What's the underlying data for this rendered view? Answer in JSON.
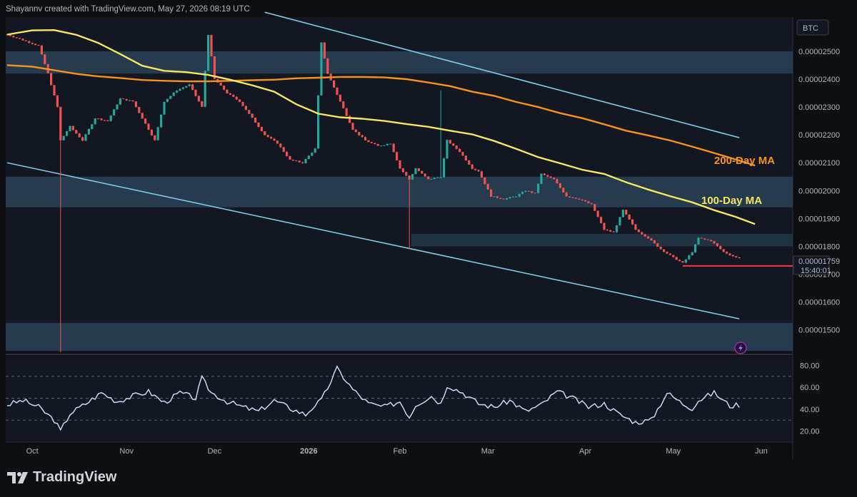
{
  "header": {
    "attribution": "Shayannv created with TradingView.com, May 27, 2026 08:19 UTC"
  },
  "footer": {
    "brand": "TradingView"
  },
  "colors": {
    "background": "#0e0f13",
    "up_candle": "#26a69a",
    "down_candle": "#ef5350",
    "ma100": "#f5e663",
    "ma200": "#f7931a",
    "channel": "#7ec8e3",
    "zone": "#2d4a5e",
    "support_line": "#f23645",
    "rsi_line": "#c9d6f0"
  },
  "chart_data": [
    {
      "type": "candlestick",
      "title": "",
      "symbol_badge": "BTC",
      "y_ticks": [
        "0.00002500",
        "0.00002400",
        "0.00002300",
        "0.00002200",
        "0.00002100",
        "0.00002000",
        "0.00001900",
        "0.00001800",
        "0.00001700",
        "0.00001600",
        "0.00001500"
      ],
      "ylim": [
        1.42e-05,
        2.62e-05
      ],
      "x_ticks": [
        "Oct",
        "Nov",
        "Dec",
        "2026",
        "Feb",
        "Mar",
        "Apr",
        "May",
        "Jun"
      ],
      "current_price": "0.00001759",
      "countdown": "15:40:01",
      "annotations": [
        {
          "text": "200-Day MA"
        },
        {
          "text": "100-Day MA"
        }
      ],
      "zones": [
        {
          "low": 2.42e-05,
          "high": 2.5e-05
        },
        {
          "low": 1.94e-05,
          "high": 2.05e-05
        },
        {
          "low": 1.8e-05,
          "high": 1.845e-05
        },
        {
          "low": 1.425e-05,
          "high": 1.525e-05
        }
      ],
      "support_level": 1.73e-05,
      "series": [
        {
          "name": "200-Day MA",
          "x": [
            0,
            8,
            15,
            22,
            29,
            36,
            43,
            50,
            57,
            64,
            71,
            78,
            85,
            92,
            99,
            106,
            113,
            120,
            127,
            134,
            141,
            148,
            155,
            162,
            169,
            176,
            183,
            190,
            197,
            204,
            211,
            218,
            225,
            232,
            238
          ],
          "values": [
            2.45e-05,
            2.445e-05,
            2.432e-05,
            2.419e-05,
            2.41e-05,
            2.404e-05,
            2.397e-05,
            2.394e-05,
            2.392e-05,
            2.392e-05,
            2.394e-05,
            2.396e-05,
            2.398e-05,
            2.403e-05,
            2.405e-05,
            2.408e-05,
            2.408e-05,
            2.406e-05,
            2.4e-05,
            2.388e-05,
            2.375e-05,
            2.355e-05,
            2.34e-05,
            2.318e-05,
            2.3e-05,
            2.278e-05,
            2.26e-05,
            2.238e-05,
            2.215e-05,
            2.198e-05,
            2.18e-05,
            2.158e-05,
            2.135e-05,
            2.111e-05,
            2.09e-05
          ]
        },
        {
          "name": "100-Day MA",
          "x": [
            0,
            8,
            15,
            22,
            29,
            36,
            43,
            50,
            57,
            64,
            71,
            78,
            85,
            92,
            99,
            106,
            113,
            120,
            127,
            134,
            141,
            148,
            155,
            162,
            169,
            176,
            183,
            190,
            197,
            204,
            211,
            218,
            225,
            232,
            238
          ],
          "values": [
            2.56e-05,
            2.575e-05,
            2.576e-05,
            2.559e-05,
            2.53e-05,
            2.49e-05,
            2.448e-05,
            2.43e-05,
            2.425e-05,
            2.415e-05,
            2.398e-05,
            2.378e-05,
            2.355e-05,
            2.31e-05,
            2.276e-05,
            2.263e-05,
            2.258e-05,
            2.25e-05,
            2.239e-05,
            2.229e-05,
            2.215e-05,
            2.202e-05,
            2.178e-05,
            2.15e-05,
            2.12e-05,
            2.098e-05,
            2.075e-05,
            2.06e-05,
            2.03e-05,
            2.004e-05,
            1.98e-05,
            1.958e-05,
            1.93e-05,
            1.905e-05,
            1.88e-05
          ]
        }
      ],
      "channel_lines": [
        {
          "from": [
            82,
            2.64e-05
          ],
          "to": [
            233,
            2.19e-05
          ]
        },
        {
          "from": [
            0,
            2.1e-05
          ],
          "to": [
            233,
            1.54e-05
          ]
        }
      ],
      "notable_wicks": [
        {
          "x": 17,
          "low": 1.42e-05
        },
        {
          "x": 128,
          "low": 1.79e-05
        },
        {
          "x": 138,
          "high": 2.36e-05
        }
      ]
    },
    {
      "type": "line",
      "title": "",
      "y_ticks": [
        "80.00",
        "60.00",
        "40.00",
        "20.00"
      ],
      "ylim": [
        10,
        88
      ],
      "dashed_levels": [
        70,
        50,
        30
      ],
      "series": [
        {
          "x": [
            0,
            5,
            10,
            15,
            17,
            20,
            25,
            30,
            35,
            40,
            45,
            50,
            55,
            60,
            62,
            65,
            70,
            75,
            80,
            85,
            90,
            95,
            98,
            100,
            105,
            110,
            115,
            120,
            125,
            128,
            130,
            135,
            138,
            140,
            145,
            150,
            155,
            160,
            165,
            170,
            175,
            180,
            185,
            190,
            195,
            200,
            205,
            210,
            215,
            218,
            220,
            225,
            230,
            233
          ],
          "values": [
            44,
            48,
            42,
            30,
            20,
            36,
            45,
            55,
            47,
            52,
            56,
            46,
            55,
            50,
            68,
            55,
            47,
            42,
            38,
            48,
            41,
            35,
            44,
            48,
            77,
            58,
            45,
            42,
            47,
            33,
            44,
            52,
            45,
            62,
            55,
            45,
            42,
            48,
            38,
            44,
            56,
            50,
            42,
            45,
            35,
            28,
            30,
            55,
            45,
            41,
            48,
            55,
            43,
            44
          ]
        }
      ]
    }
  ]
}
